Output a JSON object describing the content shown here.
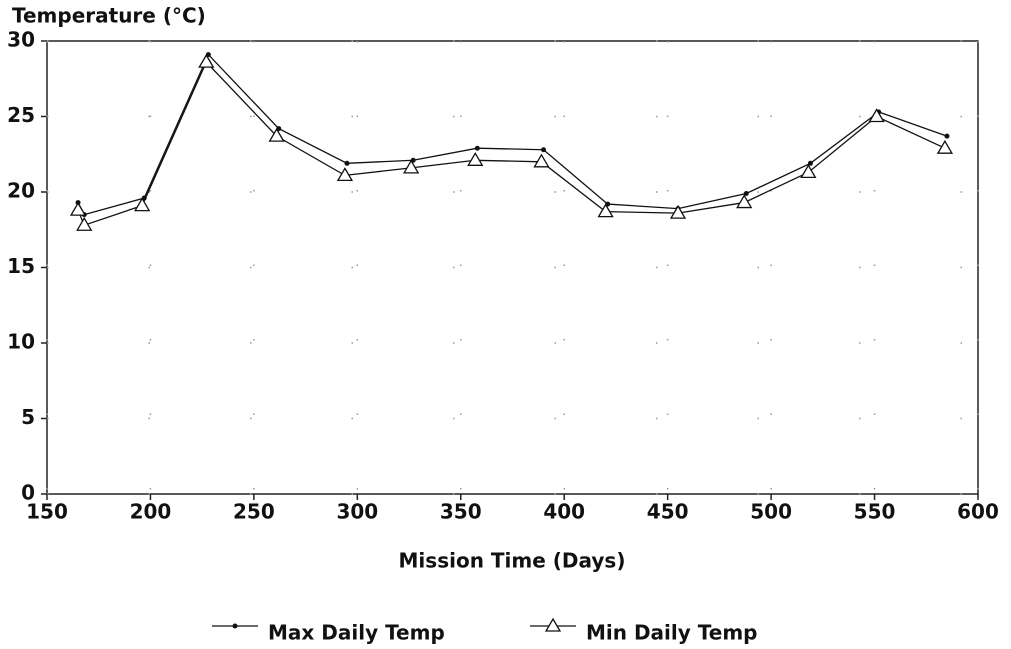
{
  "chart_data": {
    "type": "line",
    "y_axis_label": "Temperature (°C)",
    "x_axis_label": "Mission Time (Days)",
    "xlim": [
      150,
      600
    ],
    "xticks": [
      150,
      200,
      250,
      300,
      350,
      400,
      450,
      500,
      550,
      600
    ],
    "ylim": [
      0,
      30
    ],
    "yticks": [
      0,
      5,
      10,
      15,
      20,
      25,
      30
    ],
    "grid": true,
    "legend": "bottom",
    "series": [
      {
        "name": "Max Daily Temp",
        "color": "#111111",
        "marker": "dot",
        "x": [
          165,
          168,
          197,
          228,
          262,
          295,
          327,
          358,
          390,
          421,
          455,
          488,
          519,
          552,
          585
        ],
        "values": [
          19.3,
          18.5,
          19.6,
          29.1,
          24.2,
          21.9,
          22.1,
          22.9,
          22.8,
          19.2,
          18.9,
          19.9,
          21.9,
          25.3,
          23.7
        ]
      },
      {
        "name": "Min Daily Temp",
        "color": "#111111",
        "marker": "triangle",
        "x": [
          165,
          168,
          196,
          227,
          261,
          294,
          326,
          357,
          389,
          420,
          455,
          487,
          518,
          551,
          584
        ],
        "values": [
          18.8,
          17.8,
          19.1,
          28.6,
          23.7,
          21.1,
          21.6,
          22.1,
          22.0,
          18.7,
          18.6,
          19.3,
          21.3,
          25.0,
          22.9
        ]
      }
    ]
  }
}
